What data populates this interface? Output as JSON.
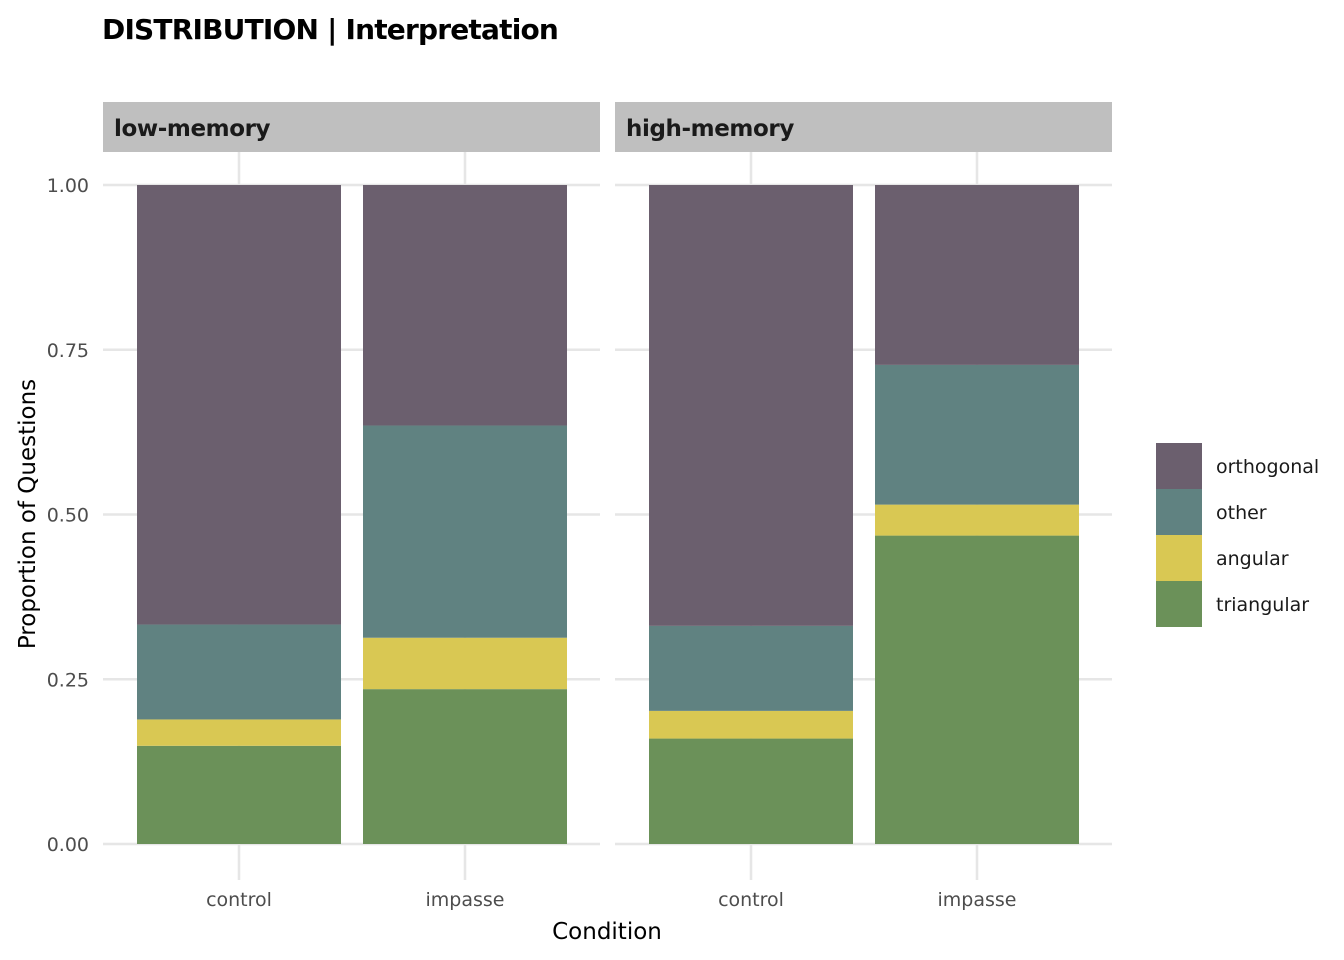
{
  "title": "DISTRIBUTION | Interpretation",
  "chart_data": {
    "type": "bar",
    "stacked": true,
    "facets": [
      "low-memory",
      "high-memory"
    ],
    "categories": [
      "control",
      "impasse"
    ],
    "xlabel": "Condition",
    "ylabel": "Proportion of Questions",
    "ylim": [
      0,
      1
    ],
    "yticks": [
      "0.00",
      "0.25",
      "0.50",
      "0.75",
      "1.00"
    ],
    "grid": true,
    "legend_position": "right",
    "series": [
      {
        "name": "triangular",
        "color": "#6b9159",
        "values": {
          "low-memory": [
            0.149,
            0.235
          ],
          "high-memory": [
            0.16,
            0.468
          ]
        }
      },
      {
        "name": "angular",
        "color": "#d9c853",
        "values": {
          "low-memory": [
            0.04,
            0.078
          ],
          "high-memory": [
            0.042,
            0.047
          ]
        }
      },
      {
        "name": "other",
        "color": "#608281",
        "values": {
          "low-memory": [
            0.144,
            0.322
          ],
          "high-memory": [
            0.129,
            0.212
          ]
        }
      },
      {
        "name": "orthogonal",
        "color": "#6b5f6e",
        "values": {
          "low-memory": [
            0.667,
            0.365
          ],
          "high-memory": [
            0.669,
            0.273
          ]
        }
      }
    ],
    "legend_order": [
      "orthogonal",
      "other",
      "angular",
      "triangular"
    ]
  }
}
